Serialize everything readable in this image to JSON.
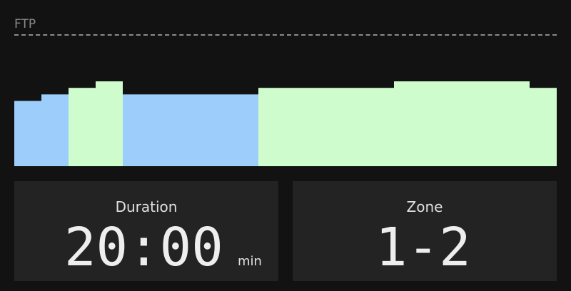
{
  "ftp_label": "FTP",
  "colors": {
    "zone1": "#9ccdfb",
    "zone2": "#cffccc",
    "background": "#121212",
    "card": "#232323"
  },
  "workout": {
    "intervals": [
      {
        "duration_min": 1,
        "power_pct_ftp": 50,
        "zone": 1
      },
      {
        "duration_min": 1,
        "power_pct_ftp": 55,
        "zone": 1
      },
      {
        "duration_min": 1,
        "power_pct_ftp": 60,
        "zone": 2
      },
      {
        "duration_min": 1,
        "power_pct_ftp": 65,
        "zone": 2
      },
      {
        "duration_min": 5,
        "power_pct_ftp": 55,
        "zone": 1
      },
      {
        "duration_min": 5,
        "power_pct_ftp": 60,
        "zone": 2
      },
      {
        "duration_min": 5,
        "power_pct_ftp": 65,
        "zone": 2
      },
      {
        "duration_min": 1,
        "power_pct_ftp": 60,
        "zone": 2
      }
    ]
  },
  "duration": {
    "label": "Duration",
    "value": "20:00",
    "unit": "min"
  },
  "zone": {
    "label": "Zone",
    "value": "1-2"
  }
}
